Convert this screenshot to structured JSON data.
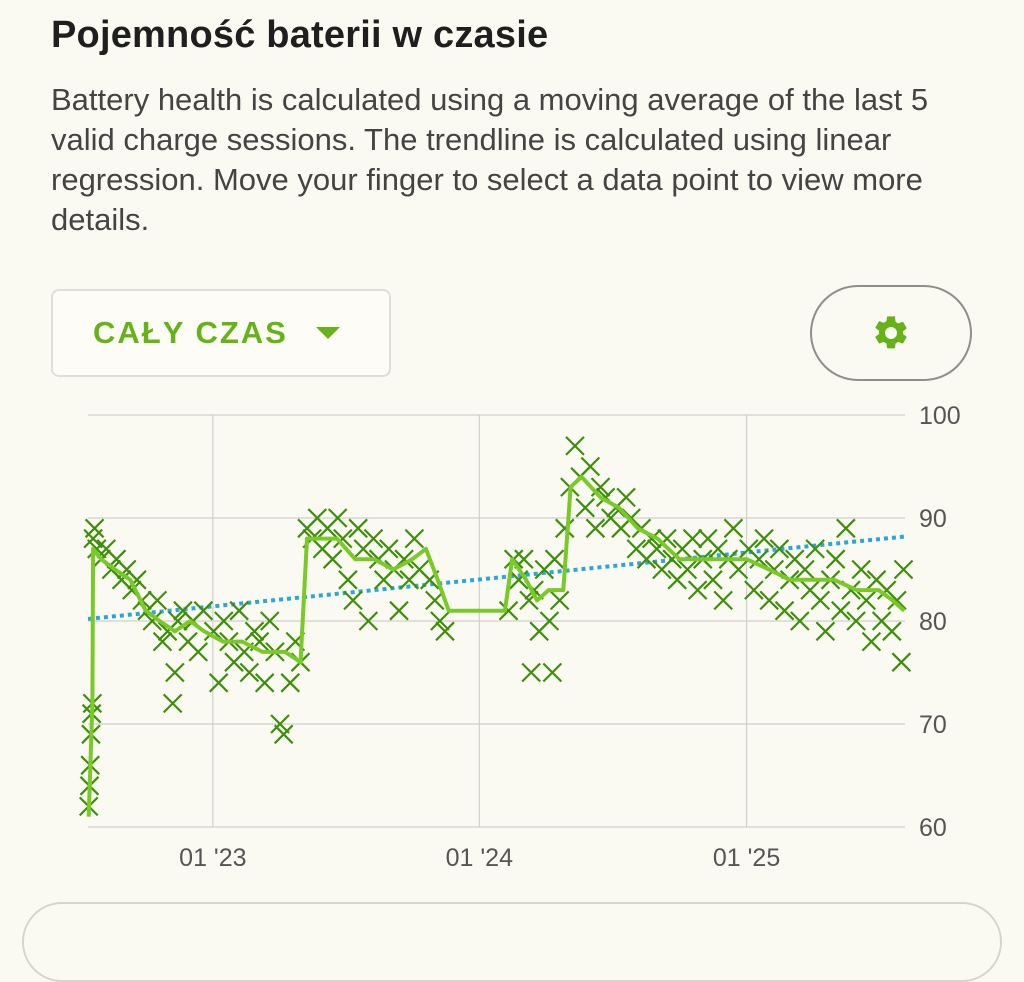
{
  "header": {
    "title": "Pojemność baterii w czasie",
    "description": "Battery health is calculated using a moving average of the last 5 valid charge sessions. The trendline is calculated using linear regression. Move your finger to select a data point to view more details."
  },
  "controls": {
    "period_label": "CAŁY CZAS",
    "settings_icon": "gear-icon"
  },
  "colors": {
    "accent": "#66b319",
    "points": "#3d8f0a",
    "moving_average": "#79c928",
    "trendline": "#2aa6d8",
    "grid": "#cfcfcf"
  },
  "chart_data": {
    "type": "scatter",
    "title": "",
    "xlabel": "",
    "ylabel": "",
    "ylim": [
      60,
      100
    ],
    "y_ticks": [
      "100",
      "90",
      "80",
      "70",
      "60"
    ],
    "x_ticks": [
      "01 '23",
      "01 '24",
      "01 '25"
    ],
    "x_range": [
      "2022-07-14",
      "2025-08-06"
    ],
    "grid": true,
    "series": [
      {
        "kind": "points",
        "marker": "x",
        "values": [
          [
            "2022-07-15",
            62
          ],
          [
            "2022-07-16",
            64
          ],
          [
            "2022-07-17",
            66
          ],
          [
            "2022-07-18",
            69
          ],
          [
            "2022-07-19",
            71
          ],
          [
            "2022-07-20",
            72
          ],
          [
            "2022-07-21",
            88
          ],
          [
            "2022-07-23",
            89
          ],
          [
            "2022-07-26",
            87
          ],
          [
            "2022-08-01",
            86
          ],
          [
            "2022-08-08",
            87
          ],
          [
            "2022-08-15",
            85
          ],
          [
            "2022-08-22",
            86
          ],
          [
            "2022-08-29",
            84
          ],
          [
            "2022-09-05",
            85
          ],
          [
            "2022-09-12",
            83
          ],
          [
            "2022-09-19",
            84
          ],
          [
            "2022-09-26",
            82
          ],
          [
            "2022-10-03",
            81
          ],
          [
            "2022-10-10",
            80
          ],
          [
            "2022-10-17",
            82
          ],
          [
            "2022-10-24",
            78
          ],
          [
            "2022-10-31",
            79
          ],
          [
            "2022-11-07",
            72
          ],
          [
            "2022-11-10",
            75
          ],
          [
            "2022-11-14",
            80
          ],
          [
            "2022-11-21",
            81
          ],
          [
            "2022-11-28",
            78
          ],
          [
            "2022-12-05",
            80
          ],
          [
            "2022-12-12",
            77
          ],
          [
            "2022-12-19",
            81
          ],
          [
            "2023-01-02",
            79
          ],
          [
            "2023-01-09",
            74
          ],
          [
            "2023-01-16",
            80
          ],
          [
            "2023-01-23",
            78
          ],
          [
            "2023-01-30",
            76
          ],
          [
            "2023-02-06",
            81
          ],
          [
            "2023-02-13",
            77
          ],
          [
            "2023-02-20",
            75
          ],
          [
            "2023-02-27",
            79
          ],
          [
            "2023-03-06",
            78
          ],
          [
            "2023-03-13",
            74
          ],
          [
            "2023-03-20",
            80
          ],
          [
            "2023-03-27",
            77
          ],
          [
            "2023-04-03",
            70
          ],
          [
            "2023-04-08",
            69
          ],
          [
            "2023-04-17",
            74
          ],
          [
            "2023-04-24",
            78
          ],
          [
            "2023-05-01",
            76
          ],
          [
            "2023-05-10",
            89
          ],
          [
            "2023-05-17",
            88
          ],
          [
            "2023-05-24",
            90
          ],
          [
            "2023-05-31",
            87
          ],
          [
            "2023-06-07",
            89
          ],
          [
            "2023-06-14",
            86
          ],
          [
            "2023-06-21",
            90
          ],
          [
            "2023-06-28",
            88
          ],
          [
            "2023-07-05",
            84
          ],
          [
            "2023-07-12",
            82
          ],
          [
            "2023-07-19",
            89
          ],
          [
            "2023-07-26",
            87
          ],
          [
            "2023-08-02",
            80
          ],
          [
            "2023-08-09",
            88
          ],
          [
            "2023-08-16",
            86
          ],
          [
            "2023-08-23",
            84
          ],
          [
            "2023-08-30",
            87
          ],
          [
            "2023-09-06",
            85
          ],
          [
            "2023-09-13",
            81
          ],
          [
            "2023-09-20",
            86
          ],
          [
            "2023-09-27",
            84
          ],
          [
            "2023-10-04",
            88
          ],
          [
            "2023-10-11",
            85
          ],
          [
            "2023-10-25",
            84
          ],
          [
            "2023-11-01",
            82
          ],
          [
            "2023-11-08",
            80
          ],
          [
            "2023-11-15",
            79
          ],
          [
            "2024-02-10",
            81
          ],
          [
            "2024-02-17",
            86
          ],
          [
            "2024-02-24",
            84
          ],
          [
            "2024-03-02",
            86
          ],
          [
            "2024-03-09",
            82
          ],
          [
            "2024-03-12",
            75
          ],
          [
            "2024-03-16",
            83
          ],
          [
            "2024-03-23",
            79
          ],
          [
            "2024-03-30",
            85
          ],
          [
            "2024-04-06",
            80
          ],
          [
            "2024-04-10",
            75
          ],
          [
            "2024-04-13",
            86
          ],
          [
            "2024-04-20",
            82
          ],
          [
            "2024-04-27",
            89
          ],
          [
            "2024-05-04",
            93
          ],
          [
            "2024-05-11",
            97
          ],
          [
            "2024-05-18",
            94
          ],
          [
            "2024-05-25",
            91
          ],
          [
            "2024-06-01",
            95
          ],
          [
            "2024-06-08",
            89
          ],
          [
            "2024-06-15",
            93
          ],
          [
            "2024-06-22",
            92
          ],
          [
            "2024-06-29",
            90
          ],
          [
            "2024-07-06",
            91
          ],
          [
            "2024-07-13",
            89
          ],
          [
            "2024-07-20",
            92
          ],
          [
            "2024-07-27",
            90
          ],
          [
            "2024-08-03",
            87
          ],
          [
            "2024-08-10",
            89
          ],
          [
            "2024-08-17",
            86
          ],
          [
            "2024-08-24",
            88
          ],
          [
            "2024-08-31",
            87
          ],
          [
            "2024-09-07",
            85
          ],
          [
            "2024-09-14",
            88
          ],
          [
            "2024-09-21",
            86
          ],
          [
            "2024-09-28",
            84
          ],
          [
            "2024-10-05",
            87
          ],
          [
            "2024-10-12",
            85
          ],
          [
            "2024-10-19",
            88
          ],
          [
            "2024-10-26",
            83
          ],
          [
            "2024-11-02",
            86
          ],
          [
            "2024-11-09",
            88
          ],
          [
            "2024-11-16",
            84
          ],
          [
            "2024-11-23",
            87
          ],
          [
            "2024-11-30",
            82
          ],
          [
            "2024-12-07",
            86
          ],
          [
            "2024-12-14",
            89
          ],
          [
            "2024-12-21",
            85
          ],
          [
            "2025-01-04",
            87
          ],
          [
            "2025-01-11",
            83
          ],
          [
            "2025-01-18",
            86
          ],
          [
            "2025-01-25",
            88
          ],
          [
            "2025-02-01",
            82
          ],
          [
            "2025-02-08",
            85
          ],
          [
            "2025-02-15",
            87
          ],
          [
            "2025-02-22",
            81
          ],
          [
            "2025-03-01",
            84
          ],
          [
            "2025-03-08",
            86
          ],
          [
            "2025-03-15",
            80
          ],
          [
            "2025-03-22",
            85
          ],
          [
            "2025-03-29",
            83
          ],
          [
            "2025-04-05",
            87
          ],
          [
            "2025-04-12",
            82
          ],
          [
            "2025-04-19",
            79
          ],
          [
            "2025-04-26",
            84
          ],
          [
            "2025-05-03",
            86
          ],
          [
            "2025-05-10",
            81
          ],
          [
            "2025-05-17",
            89
          ],
          [
            "2025-05-24",
            83
          ],
          [
            "2025-05-31",
            80
          ],
          [
            "2025-06-07",
            85
          ],
          [
            "2025-06-14",
            82
          ],
          [
            "2025-06-21",
            78
          ],
          [
            "2025-06-28",
            84
          ],
          [
            "2025-07-05",
            80
          ],
          [
            "2025-07-12",
            83
          ],
          [
            "2025-07-19",
            79
          ],
          [
            "2025-07-26",
            82
          ],
          [
            "2025-08-01",
            76
          ],
          [
            "2025-08-04",
            85
          ]
        ]
      },
      {
        "kind": "moving_average",
        "values": [
          [
            "2022-07-15",
            61
          ],
          [
            "2022-07-20",
            72
          ],
          [
            "2022-07-21",
            87
          ],
          [
            "2022-08-01",
            86
          ],
          [
            "2022-08-20",
            85
          ],
          [
            "2022-09-10",
            84
          ],
          [
            "2022-10-01",
            81
          ],
          [
            "2022-10-20",
            80
          ],
          [
            "2022-11-10",
            79
          ],
          [
            "2022-12-01",
            80
          ],
          [
            "2022-12-20",
            79
          ],
          [
            "2023-01-15",
            78
          ],
          [
            "2023-02-10",
            78
          ],
          [
            "2023-03-10",
            77
          ],
          [
            "2023-04-10",
            77
          ],
          [
            "2023-05-01",
            76
          ],
          [
            "2023-05-10",
            88
          ],
          [
            "2023-05-25",
            88
          ],
          [
            "2023-06-20",
            88
          ],
          [
            "2023-07-15",
            86
          ],
          [
            "2023-08-10",
            86
          ],
          [
            "2023-09-05",
            85
          ],
          [
            "2023-10-01",
            86
          ],
          [
            "2023-10-20",
            87
          ],
          [
            "2023-11-05",
            84
          ],
          [
            "2023-11-20",
            81
          ],
          [
            "2024-01-20",
            81
          ],
          [
            "2024-02-05",
            81
          ],
          [
            "2024-02-15",
            86
          ],
          [
            "2024-03-05",
            84
          ],
          [
            "2024-03-20",
            82
          ],
          [
            "2024-04-05",
            83
          ],
          [
            "2024-04-25",
            83
          ],
          [
            "2024-05-05",
            93
          ],
          [
            "2024-05-20",
            94
          ],
          [
            "2024-06-15",
            92
          ],
          [
            "2024-07-10",
            91
          ],
          [
            "2024-08-05",
            89
          ],
          [
            "2024-09-01",
            88
          ],
          [
            "2024-10-01",
            86
          ],
          [
            "2024-11-01",
            86
          ],
          [
            "2024-12-01",
            86
          ],
          [
            "2025-01-01",
            86
          ],
          [
            "2025-02-01",
            85
          ],
          [
            "2025-03-01",
            84
          ],
          [
            "2025-04-01",
            84
          ],
          [
            "2025-05-01",
            84
          ],
          [
            "2025-06-01",
            83
          ],
          [
            "2025-07-01",
            83
          ],
          [
            "2025-07-20",
            82
          ],
          [
            "2025-08-05",
            81
          ]
        ]
      },
      {
        "kind": "trendline",
        "values": [
          [
            "2022-07-14",
            80.2
          ],
          [
            "2025-08-06",
            88.2
          ]
        ]
      }
    ]
  }
}
